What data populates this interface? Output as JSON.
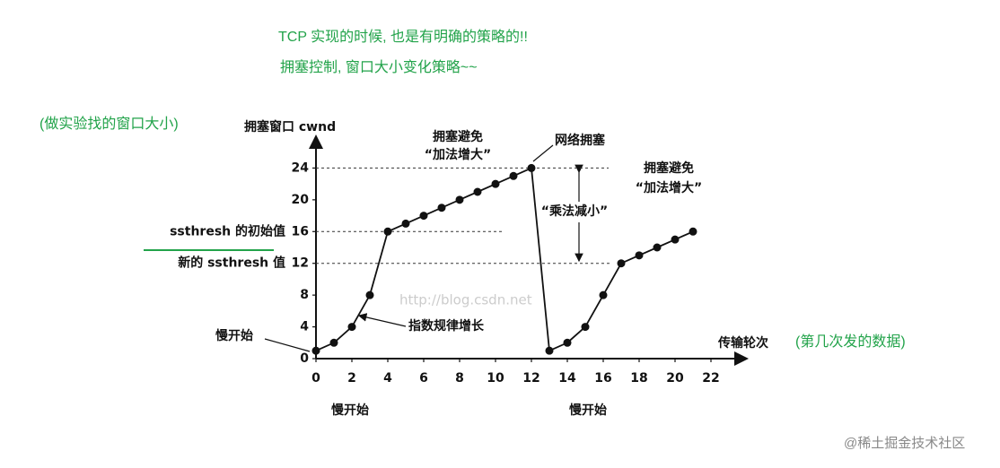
{
  "notes": [
    "TCP 实现的时候, 也是有明确的策略的!!",
    "拥塞控制, 窗口大小变化策略~~",
    "(做实验找的窗口大小)",
    "(第几次发的数据)"
  ],
  "watermarks": [
    "http://blog.csdn.net",
    "@稀土掘金技术社区"
  ],
  "chart_data": {
    "type": "line",
    "color": "#111111",
    "ylabel": "拥塞窗口 cwnd",
    "xlabel": "传输轮次",
    "x": [
      0,
      1,
      2,
      3,
      4,
      5,
      6,
      7,
      8,
      9,
      10,
      11,
      12,
      13,
      14,
      15,
      16,
      17,
      18,
      19,
      20,
      21
    ],
    "values": [
      1,
      2,
      4,
      8,
      16,
      17,
      18,
      19,
      20,
      21,
      22,
      23,
      24,
      1,
      2,
      4,
      8,
      12,
      13,
      14,
      15,
      16
    ],
    "xlim": [
      0,
      24
    ],
    "ylim": [
      0,
      28
    ],
    "xticks": [
      0,
      2,
      4,
      6,
      8,
      10,
      12,
      14,
      16,
      18,
      20,
      22
    ],
    "yticks": [
      0,
      4,
      8,
      12,
      16,
      20,
      24
    ],
    "reference_lines": [
      {
        "value": 24
      },
      {
        "value": 16,
        "label": "ssthresh 的初始值"
      },
      {
        "value": 12,
        "label": "新的 ssthresh 值"
      }
    ],
    "annotations": [
      "拥塞避免",
      "“加法增大”",
      "网络拥塞",
      "拥塞避免",
      "“加法增大”",
      "“乘法减小”",
      "指数规律增长",
      "慢开始",
      "慢开始",
      "慢开始"
    ]
  }
}
